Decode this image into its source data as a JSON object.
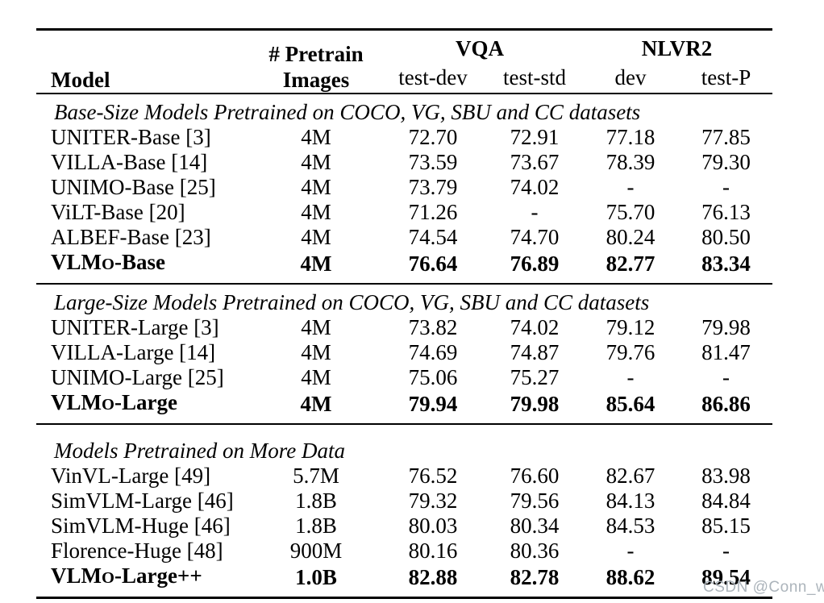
{
  "table": {
    "header": {
      "model": "Model",
      "pretrain_line1": "# Pretrain",
      "pretrain_line2": "Images",
      "vqa": "VQA",
      "nlvr2": "NLVR2",
      "sub": [
        "test-dev",
        "test-std",
        "dev",
        "test-P"
      ]
    },
    "sections": [
      {
        "title": "Base-Size Models Pretrained on COCO, VG, SBU and CC datasets",
        "rows": [
          {
            "model": "UNITER-Base [3]",
            "pretrain": "4M",
            "values": [
              "72.70",
              "72.91",
              "77.18",
              "77.85"
            ],
            "bold": false
          },
          {
            "model": "VILLA-Base [14]",
            "pretrain": "4M",
            "values": [
              "73.59",
              "73.67",
              "78.39",
              "79.30"
            ],
            "bold": false
          },
          {
            "model": "UNIMO-Base [25]",
            "pretrain": "4M",
            "values": [
              "73.79",
              "74.02",
              "-",
              "-"
            ],
            "bold": false
          },
          {
            "model": "ViLT-Base [20]",
            "pretrain": "4M",
            "values": [
              "71.26",
              "-",
              "75.70",
              "76.13"
            ],
            "bold": false
          },
          {
            "model": "ALBEF-Base [23]",
            "pretrain": "4M",
            "values": [
              "74.54",
              "74.70",
              "80.24",
              "80.50"
            ],
            "bold": false
          },
          {
            "model": "VLMO-Base",
            "pretrain": "4M",
            "values": [
              "76.64",
              "76.89",
              "82.77",
              "83.34"
            ],
            "bold": true
          }
        ]
      },
      {
        "title": "Large-Size Models Pretrained on COCO, VG, SBU and CC datasets",
        "rows": [
          {
            "model": "UNITER-Large [3]",
            "pretrain": "4M",
            "values": [
              "73.82",
              "74.02",
              "79.12",
              "79.98"
            ],
            "bold": false
          },
          {
            "model": "VILLA-Large [14]",
            "pretrain": "4M",
            "values": [
              "74.69",
              "74.87",
              "79.76",
              "81.47"
            ],
            "bold": false
          },
          {
            "model": "UNIMO-Large [25]",
            "pretrain": "4M",
            "values": [
              "75.06",
              "75.27",
              "-",
              "-"
            ],
            "bold": false
          },
          {
            "model": "VLMO-Large",
            "pretrain": "4M",
            "values": [
              "79.94",
              "79.98",
              "85.64",
              "86.86"
            ],
            "bold": true
          }
        ]
      },
      {
        "title": "Models Pretrained on More Data",
        "rows": [
          {
            "model": "VinVL-Large [49]",
            "pretrain": "5.7M",
            "values": [
              "76.52",
              "76.60",
              "82.67",
              "83.98"
            ],
            "bold": false
          },
          {
            "model": "SimVLM-Large [46]",
            "pretrain": "1.8B",
            "values": [
              "79.32",
              "79.56",
              "84.13",
              "84.84"
            ],
            "bold": false
          },
          {
            "model": "SimVLM-Huge [46]",
            "pretrain": "1.8B",
            "values": [
              "80.03",
              "80.34",
              "84.53",
              "85.15"
            ],
            "bold": false
          },
          {
            "model": "Florence-Huge [48]",
            "pretrain": "900M",
            "values": [
              "80.16",
              "80.36",
              "-",
              "-"
            ],
            "bold": false
          },
          {
            "model": "VLMO-Large++",
            "pretrain": "1.0B",
            "values": [
              "82.88",
              "82.78",
              "88.62",
              "89.54"
            ],
            "bold": true
          }
        ]
      }
    ]
  },
  "watermark": "CSDN @Conn_w"
}
